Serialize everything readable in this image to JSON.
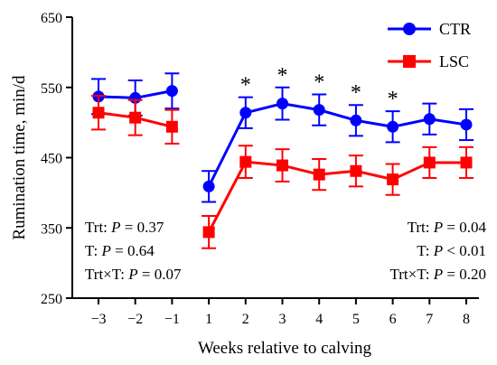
{
  "chart_data": {
    "type": "line",
    "xlabel": "Weeks relative to calving",
    "ylabel": "Rumination time, min/d",
    "ylim": [
      250,
      650
    ],
    "yticks": [
      250,
      350,
      450,
      550,
      650
    ],
    "x": [
      "−3",
      "−2",
      "−1",
      "1",
      "2",
      "3",
      "4",
      "5",
      "6",
      "7",
      "8"
    ],
    "segments": [
      [
        0,
        2
      ],
      [
        3,
        10
      ]
    ],
    "series": [
      {
        "name": "CTR",
        "color": "#0000ff",
        "marker": "circle",
        "values": [
          537,
          535,
          545,
          409,
          514,
          527,
          518,
          503,
          494,
          505,
          497
        ],
        "errors": [
          25,
          25,
          25,
          22,
          22,
          23,
          22,
          22,
          22,
          22,
          22
        ]
      },
      {
        "name": "LSC",
        "color": "#ff0000",
        "marker": "square",
        "values": [
          514,
          507,
          494,
          344,
          444,
          439,
          426,
          431,
          419,
          443,
          443
        ],
        "errors": [
          24,
          25,
          24,
          23,
          23,
          23,
          22,
          22,
          22,
          22,
          22
        ]
      }
    ],
    "significance": {
      "symbol": "*",
      "weeks": [
        "2",
        "3",
        "4",
        "5",
        "6"
      ]
    },
    "legend_position": "top-right",
    "grid": false,
    "annotations": {
      "left": [
        "Trt: P = 0.37",
        "T: P = 0.64",
        "Trt×T: P = 0.07"
      ],
      "right": [
        "Trt: P = 0.04",
        "T: P < 0.01",
        "Trt×T: P = 0.20"
      ]
    }
  }
}
